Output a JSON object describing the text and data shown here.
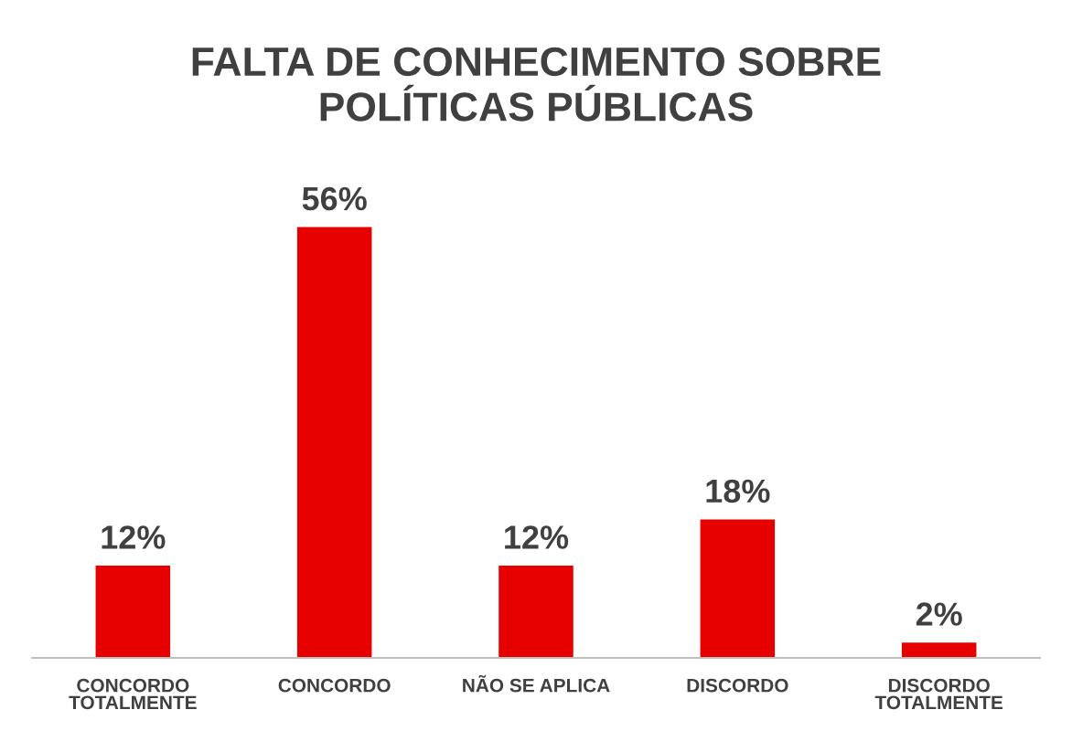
{
  "chart_data": {
    "type": "bar",
    "title": "FALTA DE CONHECIMENTO SOBRE\nPOLÍTICAS PÚBLICAS",
    "categories": [
      "CONCORDO\nTOTALMENTE",
      "CONCORDO",
      "NÃO SE APLICA",
      "DISCORDO",
      "DISCORDO\nTOTALMENTE"
    ],
    "values": [
      12,
      56,
      12,
      18,
      2
    ],
    "value_labels": [
      "12%",
      "56%",
      "12%",
      "18%",
      "2%"
    ],
    "color": "#e60000",
    "grid": false,
    "legend": false
  }
}
